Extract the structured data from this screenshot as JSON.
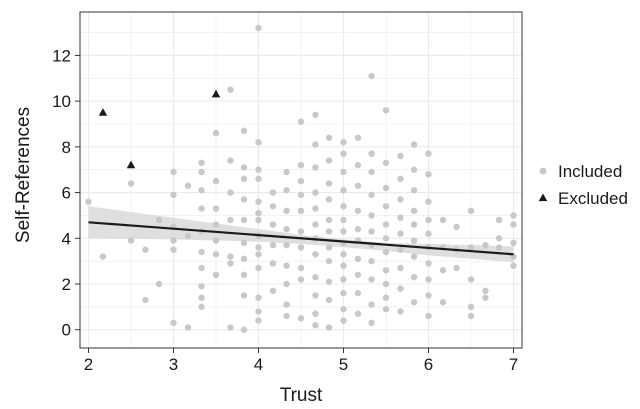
{
  "chart_data": {
    "type": "scatter",
    "xlabel": "Trust",
    "ylabel": "Self-References",
    "xlim": [
      1.9,
      7.1
    ],
    "ylim": [
      -0.8,
      13.9
    ],
    "xticks": [
      2,
      3,
      4,
      5,
      6,
      7
    ],
    "yticks": [
      0,
      2,
      4,
      6,
      8,
      10,
      12
    ],
    "xtick_labels": [
      "2",
      "3",
      "4",
      "5",
      "6",
      "7"
    ],
    "ytick_labels": [
      "0",
      "2",
      "4",
      "6",
      "8",
      "10",
      "12"
    ],
    "grid": true,
    "legend_position": "right",
    "colors": {
      "included": "#c8c8c8",
      "excluded": "#1a1a1a",
      "fit_line": "#1a1a1a",
      "confidence_band": "#d9d9d9",
      "grid": "#ebebeb"
    },
    "series": [
      {
        "name": "Included",
        "marker": "circle",
        "points": [
          [
            2.0,
            5.6
          ],
          [
            2.17,
            3.2
          ],
          [
            2.5,
            6.4
          ],
          [
            2.5,
            3.9
          ],
          [
            2.67,
            3.5
          ],
          [
            2.67,
            1.3
          ],
          [
            2.83,
            2.0
          ],
          [
            2.83,
            4.8
          ],
          [
            3.0,
            6.9
          ],
          [
            3.0,
            5.9
          ],
          [
            3.0,
            4.5
          ],
          [
            3.0,
            3.9
          ],
          [
            3.0,
            3.5
          ],
          [
            3.0,
            0.3
          ],
          [
            3.17,
            0.1
          ],
          [
            3.17,
            4.1
          ],
          [
            3.17,
            6.3
          ],
          [
            3.33,
            7.3
          ],
          [
            3.33,
            6.9
          ],
          [
            3.33,
            6.1
          ],
          [
            3.33,
            5.3
          ],
          [
            3.33,
            4.3
          ],
          [
            3.33,
            3.4
          ],
          [
            3.33,
            2.7
          ],
          [
            3.33,
            1.9
          ],
          [
            3.33,
            1.4
          ],
          [
            3.33,
            1.0
          ],
          [
            3.5,
            8.6
          ],
          [
            3.5,
            6.5
          ],
          [
            3.5,
            5.3
          ],
          [
            3.5,
            4.6
          ],
          [
            3.5,
            3.9
          ],
          [
            3.5,
            3.3
          ],
          [
            3.5,
            2.4
          ],
          [
            3.67,
            10.5
          ],
          [
            3.67,
            7.4
          ],
          [
            3.67,
            6.0
          ],
          [
            3.67,
            4.8
          ],
          [
            3.67,
            3.2
          ],
          [
            3.67,
            2.9
          ],
          [
            3.67,
            0.1
          ],
          [
            3.83,
            8.7
          ],
          [
            3.83,
            7.1
          ],
          [
            3.83,
            6.6
          ],
          [
            3.83,
            5.7
          ],
          [
            3.83,
            4.8
          ],
          [
            3.83,
            3.8
          ],
          [
            3.83,
            3.1
          ],
          [
            3.83,
            2.4
          ],
          [
            3.83,
            1.5
          ],
          [
            3.83,
            0.0
          ],
          [
            4.0,
            13.2
          ],
          [
            4.0,
            8.2
          ],
          [
            4.0,
            7.0
          ],
          [
            4.0,
            6.6
          ],
          [
            4.0,
            5.6
          ],
          [
            4.0,
            5.1
          ],
          [
            4.0,
            4.8
          ],
          [
            4.0,
            4.1
          ],
          [
            4.0,
            3.6
          ],
          [
            4.0,
            3.3
          ],
          [
            4.0,
            2.7
          ],
          [
            4.0,
            1.4
          ],
          [
            4.0,
            0.8
          ],
          [
            4.0,
            0.4
          ],
          [
            4.17,
            6.0
          ],
          [
            4.17,
            5.4
          ],
          [
            4.17,
            4.6
          ],
          [
            4.17,
            3.7
          ],
          [
            4.17,
            2.9
          ],
          [
            4.17,
            1.7
          ],
          [
            4.33,
            6.9
          ],
          [
            4.33,
            6.1
          ],
          [
            4.33,
            5.2
          ],
          [
            4.33,
            4.4
          ],
          [
            4.33,
            3.7
          ],
          [
            4.33,
            2.8
          ],
          [
            4.33,
            2.0
          ],
          [
            4.33,
            1.1
          ],
          [
            4.33,
            0.6
          ],
          [
            4.5,
            9.1
          ],
          [
            4.5,
            7.2
          ],
          [
            4.5,
            6.5
          ],
          [
            4.5,
            5.9
          ],
          [
            4.5,
            5.2
          ],
          [
            4.5,
            4.3
          ],
          [
            4.5,
            3.6
          ],
          [
            4.5,
            2.7
          ],
          [
            4.5,
            2.2
          ],
          [
            4.5,
            0.5
          ],
          [
            4.67,
            9.4
          ],
          [
            4.67,
            8.1
          ],
          [
            4.67,
            7.1
          ],
          [
            4.67,
            6.0
          ],
          [
            4.67,
            5.3
          ],
          [
            4.67,
            4.6
          ],
          [
            4.67,
            4.0
          ],
          [
            4.67,
            3.3
          ],
          [
            4.67,
            2.3
          ],
          [
            4.67,
            1.5
          ],
          [
            4.67,
            0.7
          ],
          [
            4.67,
            0.2
          ],
          [
            4.83,
            8.4
          ],
          [
            4.83,
            7.4
          ],
          [
            4.83,
            6.4
          ],
          [
            4.83,
            5.7
          ],
          [
            4.83,
            4.8
          ],
          [
            4.83,
            4.3
          ],
          [
            4.83,
            3.6
          ],
          [
            4.83,
            3.0
          ],
          [
            4.83,
            2.1
          ],
          [
            4.83,
            1.3
          ],
          [
            4.83,
            0.1
          ],
          [
            5.0,
            8.2
          ],
          [
            5.0,
            7.7
          ],
          [
            5.0,
            6.9
          ],
          [
            5.0,
            6.1
          ],
          [
            5.0,
            5.4
          ],
          [
            5.0,
            4.8
          ],
          [
            5.0,
            4.3
          ],
          [
            5.0,
            3.8
          ],
          [
            5.0,
            3.3
          ],
          [
            5.0,
            2.8
          ],
          [
            5.0,
            2.2
          ],
          [
            5.0,
            1.6
          ],
          [
            5.0,
            0.9
          ],
          [
            5.0,
            0.4
          ],
          [
            5.17,
            8.4
          ],
          [
            5.17,
            7.2
          ],
          [
            5.17,
            6.3
          ],
          [
            5.17,
            5.2
          ],
          [
            5.17,
            4.4
          ],
          [
            5.17,
            3.9
          ],
          [
            5.17,
            3.1
          ],
          [
            5.17,
            2.4
          ],
          [
            5.17,
            1.6
          ],
          [
            5.17,
            0.7
          ],
          [
            5.33,
            11.1
          ],
          [
            5.33,
            7.7
          ],
          [
            5.33,
            6.9
          ],
          [
            5.33,
            5.9
          ],
          [
            5.33,
            5.0
          ],
          [
            5.33,
            4.3
          ],
          [
            5.33,
            3.7
          ],
          [
            5.33,
            3.0
          ],
          [
            5.33,
            2.2
          ],
          [
            5.33,
            1.1
          ],
          [
            5.33,
            0.3
          ],
          [
            5.5,
            9.6
          ],
          [
            5.5,
            7.3
          ],
          [
            5.5,
            6.2
          ],
          [
            5.5,
            5.4
          ],
          [
            5.5,
            4.6
          ],
          [
            5.5,
            4.0
          ],
          [
            5.5,
            3.4
          ],
          [
            5.5,
            2.6
          ],
          [
            5.5,
            2.0
          ],
          [
            5.5,
            1.4
          ],
          [
            5.5,
            0.9
          ],
          [
            5.67,
            7.6
          ],
          [
            5.67,
            6.6
          ],
          [
            5.67,
            5.7
          ],
          [
            5.67,
            4.9
          ],
          [
            5.67,
            4.2
          ],
          [
            5.67,
            3.5
          ],
          [
            5.67,
            2.7
          ],
          [
            5.67,
            1.8
          ],
          [
            5.67,
            0.8
          ],
          [
            5.83,
            8.1
          ],
          [
            5.83,
            7.0
          ],
          [
            5.83,
            6.1
          ],
          [
            5.83,
            5.2
          ],
          [
            5.83,
            4.6
          ],
          [
            5.83,
            3.9
          ],
          [
            5.83,
            3.2
          ],
          [
            5.83,
            2.3
          ],
          [
            5.83,
            1.2
          ],
          [
            6.0,
            7.7
          ],
          [
            6.0,
            6.8
          ],
          [
            6.0,
            5.6
          ],
          [
            6.0,
            4.8
          ],
          [
            6.0,
            4.2
          ],
          [
            6.0,
            3.6
          ],
          [
            6.0,
            2.9
          ],
          [
            6.0,
            2.2
          ],
          [
            6.0,
            1.5
          ],
          [
            6.0,
            0.6
          ],
          [
            6.17,
            4.8
          ],
          [
            6.17,
            3.6
          ],
          [
            6.17,
            2.6
          ],
          [
            6.17,
            1.2
          ],
          [
            6.33,
            4.5
          ],
          [
            6.33,
            3.5
          ],
          [
            6.33,
            2.7
          ],
          [
            6.5,
            5.2
          ],
          [
            6.5,
            3.6
          ],
          [
            6.5,
            2.2
          ],
          [
            6.5,
            1.0
          ],
          [
            6.5,
            0.6
          ],
          [
            6.67,
            3.7
          ],
          [
            6.67,
            1.7
          ],
          [
            6.67,
            1.4
          ],
          [
            6.83,
            4.8
          ],
          [
            6.83,
            4.0
          ],
          [
            6.83,
            3.6
          ],
          [
            7.0,
            5.0
          ],
          [
            7.0,
            4.6
          ],
          [
            7.0,
            3.8
          ],
          [
            7.0,
            3.2
          ],
          [
            7.0,
            2.8
          ]
        ]
      },
      {
        "name": "Excluded",
        "marker": "triangle",
        "points": [
          [
            2.17,
            9.5
          ],
          [
            2.5,
            7.2
          ],
          [
            3.5,
            10.3
          ]
        ]
      }
    ],
    "fit_line": {
      "x": [
        2,
        7
      ],
      "y": [
        4.7,
        3.3
      ]
    },
    "confidence_band": {
      "x": [
        2.0,
        3.0,
        4.0,
        4.5,
        5.0,
        5.5,
        6.0,
        7.0
      ],
      "upper": [
        5.4,
        4.9,
        4.4,
        4.15,
        3.95,
        3.8,
        3.75,
        3.65
      ],
      "lower": [
        4.0,
        3.95,
        3.85,
        3.75,
        3.6,
        3.45,
        3.25,
        2.95
      ]
    }
  }
}
